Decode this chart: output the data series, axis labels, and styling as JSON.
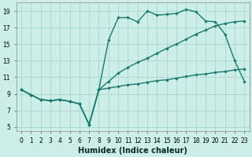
{
  "xlabel": "Humidex (Indice chaleur)",
  "bg_color": "#cceee8",
  "grid_color": "#aad4ce",
  "line_color": "#1a7a6e",
  "xlim": [
    -0.5,
    23.5
  ],
  "ylim": [
    4.5,
    20.0
  ],
  "xticks": [
    0,
    1,
    2,
    3,
    4,
    5,
    6,
    7,
    8,
    9,
    10,
    11,
    12,
    13,
    14,
    15,
    16,
    17,
    18,
    19,
    20,
    21,
    22,
    23
  ],
  "yticks": [
    5,
    7,
    9,
    11,
    13,
    15,
    17,
    19
  ],
  "line_jagged_x": [
    0,
    1,
    2,
    3,
    4,
    5,
    6,
    7,
    8,
    9,
    10,
    11,
    12,
    13,
    14,
    15,
    16,
    17,
    18,
    19,
    20,
    21,
    22,
    23
  ],
  "line_jagged_y": [
    9.5,
    8.9,
    8.3,
    8.2,
    8.3,
    8.1,
    7.8,
    5.3,
    9.5,
    15.5,
    18.2,
    18.2,
    17.7,
    19.0,
    18.5,
    18.6,
    18.7,
    19.2,
    18.9,
    17.8,
    17.7,
    16.2,
    13.0,
    10.5
  ],
  "line_upper_x": [
    0,
    1,
    2,
    3,
    4,
    5,
    6,
    7,
    8,
    9,
    10,
    11,
    12,
    13,
    14,
    15,
    16,
    17,
    18,
    19,
    20,
    21,
    22,
    23
  ],
  "line_upper_y": [
    9.5,
    8.9,
    8.3,
    8.2,
    8.3,
    8.1,
    7.8,
    5.3,
    9.5,
    10.5,
    11.5,
    12.2,
    12.8,
    13.3,
    13.9,
    14.5,
    15.0,
    15.6,
    16.2,
    16.7,
    17.2,
    17.5,
    17.7,
    17.8
  ],
  "line_lower_x": [
    0,
    1,
    2,
    3,
    4,
    5,
    6,
    7,
    8,
    9,
    10,
    11,
    12,
    13,
    14,
    15,
    16,
    17,
    18,
    19,
    20,
    21,
    22,
    23
  ],
  "line_lower_y": [
    9.5,
    8.9,
    8.3,
    8.2,
    8.3,
    8.1,
    7.8,
    5.3,
    9.5,
    9.7,
    9.9,
    10.1,
    10.2,
    10.4,
    10.6,
    10.7,
    10.9,
    11.1,
    11.3,
    11.4,
    11.6,
    11.7,
    11.9,
    12.0
  ],
  "xlabel_fontsize": 7,
  "tick_fontsize": 5.5,
  "linewidth": 1.0,
  "markersize": 2.2
}
